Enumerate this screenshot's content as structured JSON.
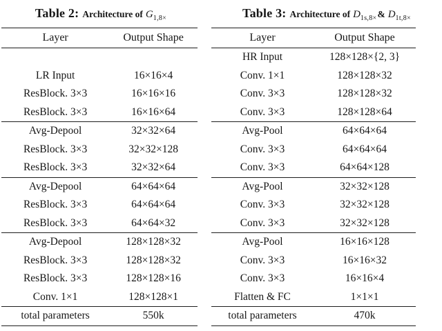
{
  "page": {
    "background_color": "#ffffff",
    "text_color": "#161616",
    "rule_color": "#1c1c1c"
  },
  "tables": [
    {
      "caption": {
        "label": "Table 2:",
        "prefix": "Architecture of",
        "math": [
          {
            "base": "G",
            "sub": "1,8×"
          }
        ],
        "joiner": ""
      },
      "columns": [
        "Layer",
        "Output Shape"
      ],
      "groups": [
        [
          [
            "",
            ""
          ],
          [
            "LR Input",
            "16×16×4"
          ],
          [
            "ResBlock. 3×3",
            "16×16×16"
          ],
          [
            "ResBlock. 3×3",
            "16×16×64"
          ]
        ],
        [
          [
            "Avg-Depool",
            "32×32×64"
          ],
          [
            "ResBlock. 3×3",
            "32×32×128"
          ],
          [
            "ResBlock. 3×3",
            "32×32×64"
          ]
        ],
        [
          [
            "Avg-Depool",
            "64×64×64"
          ],
          [
            "ResBlock. 3×3",
            "64×64×64"
          ],
          [
            "ResBlock. 3×3",
            "64×64×32"
          ]
        ],
        [
          [
            "Avg-Depool",
            "128×128×32"
          ],
          [
            "ResBlock. 3×3",
            "128×128×32"
          ],
          [
            "ResBlock. 3×3",
            "128×128×16"
          ],
          [
            "Conv. 1×1",
            "128×128×1"
          ]
        ]
      ],
      "footer": [
        "total parameters",
        "550k"
      ]
    },
    {
      "caption": {
        "label": "Table 3:",
        "prefix": "Architecture of",
        "math": [
          {
            "base": "D",
            "sub": "1s,8×"
          },
          {
            "base": "D",
            "sub": "1t,8×"
          }
        ],
        "joiner": "&"
      },
      "columns": [
        "Layer",
        "Output Shape"
      ],
      "groups": [
        [
          [
            "HR Input",
            "128×128×{2, 3}"
          ],
          [
            "Conv. 1×1",
            "128×128×32"
          ],
          [
            "Conv. 3×3",
            "128×128×32"
          ],
          [
            "Conv. 3×3",
            "128×128×64"
          ]
        ],
        [
          [
            "Avg-Pool",
            "64×64×64"
          ],
          [
            "Conv. 3×3",
            "64×64×64"
          ],
          [
            "Conv. 3×3",
            "64×64×128"
          ]
        ],
        [
          [
            "Avg-Pool",
            "32×32×128"
          ],
          [
            "Conv. 3×3",
            "32×32×128"
          ],
          [
            "Conv. 3×3",
            "32×32×128"
          ]
        ],
        [
          [
            "Avg-Pool",
            "16×16×128"
          ],
          [
            "Conv. 3×3",
            "16×16×32"
          ],
          [
            "Conv. 3×3",
            "16×16×4"
          ],
          [
            "Flatten & FC",
            "1×1×1"
          ]
        ]
      ],
      "footer": [
        "total parameters",
        "470k"
      ]
    }
  ]
}
